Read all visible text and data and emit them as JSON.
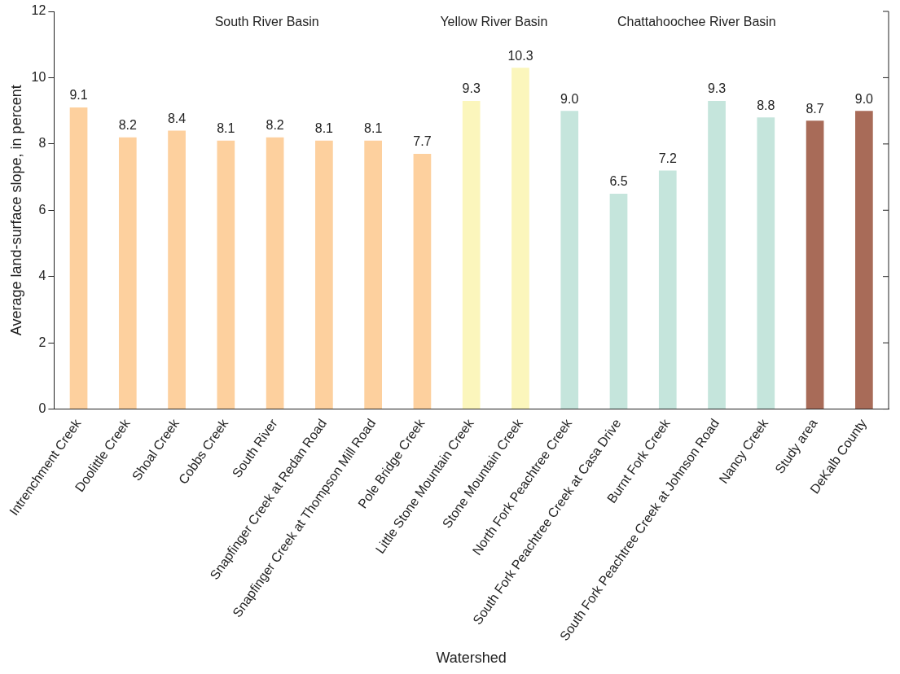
{
  "chart_data": {
    "type": "bar",
    "xlabel": "Watershed",
    "ylabel": "Average land-surface slope, in percent",
    "categories": [
      "Intrenchment Creek",
      "Doolittle Creek",
      "Shoal Creek",
      "Cobbs Creek",
      "South River",
      "Snapfinger Creek at Redan Road",
      "Snapfinger Creek at Thompson Mill Road",
      "Pole Bridge Creek",
      "Little Stone Mountain Creek",
      "Stone Mountain Creek",
      "North Fork Peachtree Creek",
      "South Fork Peachtree Creek at Casa Drive",
      "Burnt Fork Creek",
      "South Fork Peachtree Creek at Johnson Road",
      "Nancy Creek",
      "Study area",
      "DeKalb County"
    ],
    "values": [
      9.1,
      8.2,
      8.4,
      8.1,
      8.2,
      8.1,
      8.1,
      7.7,
      9.3,
      10.3,
      9.0,
      6.5,
      7.2,
      9.3,
      8.8,
      8.7,
      9.0
    ],
    "value_labels": [
      "9.1",
      "8.2",
      "8.4",
      "8.1",
      "8.2",
      "8.1",
      "8.1",
      "7.7",
      "9.3",
      "10.3",
      "9.0",
      "6.5",
      "7.2",
      "9.3",
      "8.8",
      "8.7",
      "9.0"
    ],
    "colors": [
      "#fdd09e",
      "#fdd09e",
      "#fdd09e",
      "#fdd09e",
      "#fdd09e",
      "#fdd09e",
      "#fdd09e",
      "#fdd09e",
      "#fbf6bc",
      "#fbf6bc",
      "#c5e5dc",
      "#c5e5dc",
      "#c5e5dc",
      "#c5e5dc",
      "#c5e5dc",
      "#a86b58",
      "#a86b58"
    ],
    "ylim": [
      0,
      12
    ],
    "yticks": [
      0,
      2,
      4,
      6,
      8,
      10,
      12
    ],
    "grid": false,
    "legend": false,
    "annotations": [
      "South River Basin",
      "Yellow River Basin",
      "Chattahoochee River Basin"
    ]
  }
}
